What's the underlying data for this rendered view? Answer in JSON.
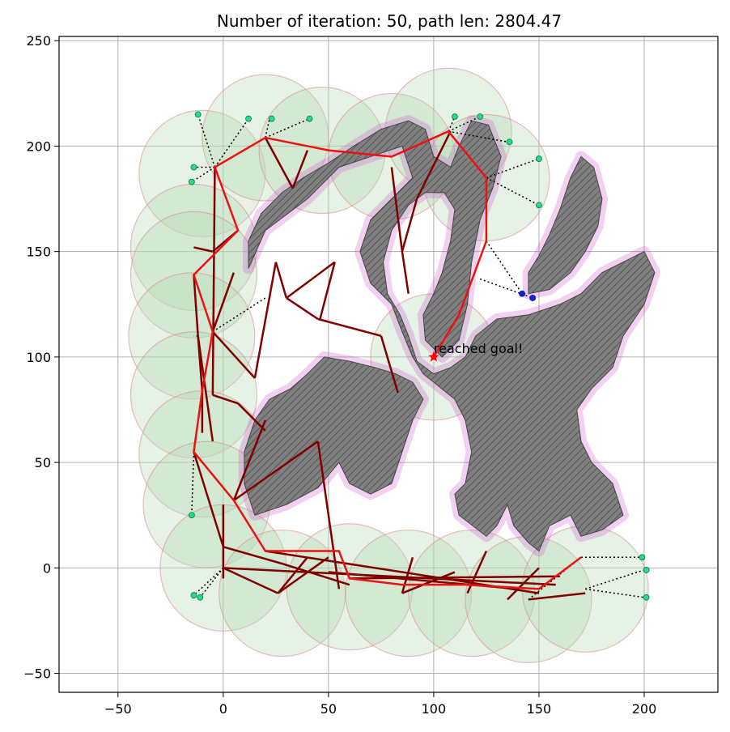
{
  "chart_data": {
    "type": "scatter",
    "title": "Number of iteration: 50, path len: 2804.47",
    "xlabel": "",
    "ylabel": "",
    "xlim": [
      -78,
      235
    ],
    "ylim": [
      -59,
      252
    ],
    "grid": true,
    "x_ticks": [
      -50,
      0,
      50,
      100,
      150,
      200
    ],
    "y_ticks": [
      -50,
      0,
      50,
      100,
      150,
      200,
      250
    ],
    "annotation": {
      "text": "reached goal!",
      "x": 100,
      "y": 100
    },
    "goal": {
      "x": 100,
      "y": 100
    },
    "colors": {
      "obstacle": "#808080",
      "free_region": "#e8b0ee",
      "coverage_circle": "#b5d9b5",
      "final_path": "#ee1111",
      "tree_edges": "#800000",
      "frontier_point": "#22dd88",
      "blue_point": "#1122cc"
    },
    "obstacles": [
      [
        [
          12,
          142
        ],
        [
          20,
          160
        ],
        [
          40,
          175
        ],
        [
          55,
          190
        ],
        [
          70,
          195
        ],
        [
          85,
          200
        ],
        [
          90,
          185
        ],
        [
          80,
          175
        ],
        [
          70,
          165
        ],
        [
          65,
          150
        ],
        [
          70,
          135
        ],
        [
          80,
          125
        ],
        [
          85,
          112
        ],
        [
          90,
          100
        ],
        [
          95,
          92
        ],
        [
          100,
          88
        ],
        [
          110,
          80
        ],
        [
          115,
          70
        ],
        [
          118,
          55
        ],
        [
          115,
          40
        ],
        [
          110,
          35
        ],
        [
          112,
          25
        ],
        [
          125,
          15
        ],
        [
          130,
          20
        ],
        [
          135,
          30
        ],
        [
          138,
          20
        ],
        [
          145,
          12
        ],
        [
          150,
          8
        ],
        [
          155,
          20
        ],
        [
          165,
          25
        ],
        [
          170,
          15
        ],
        [
          180,
          18
        ],
        [
          190,
          25
        ],
        [
          185,
          40
        ],
        [
          175,
          50
        ],
        [
          170,
          60
        ],
        [
          168,
          75
        ],
        [
          175,
          85
        ],
        [
          185,
          95
        ],
        [
          190,
          110
        ],
        [
          200,
          125
        ],
        [
          205,
          140
        ],
        [
          200,
          150
        ],
        [
          190,
          145
        ],
        [
          180,
          140
        ],
        [
          170,
          130
        ],
        [
          160,
          125
        ],
        [
          145,
          120
        ],
        [
          130,
          118
        ],
        [
          120,
          110
        ],
        [
          115,
          100
        ],
        [
          108,
          95
        ],
        [
          100,
          92
        ],
        [
          92,
          98
        ],
        [
          88,
          110
        ],
        [
          84,
          120
        ],
        [
          78,
          130
        ],
        [
          76,
          145
        ],
        [
          80,
          160
        ],
        [
          88,
          172
        ],
        [
          96,
          178
        ],
        [
          105,
          178
        ],
        [
          110,
          170
        ],
        [
          108,
          155
        ],
        [
          104,
          140
        ],
        [
          100,
          130
        ],
        [
          95,
          120
        ],
        [
          96,
          108
        ],
        [
          104,
          100
        ],
        [
          112,
          108
        ],
        [
          116,
          125
        ],
        [
          118,
          145
        ],
        [
          122,
          165
        ],
        [
          128,
          180
        ],
        [
          132,
          195
        ],
        [
          126,
          210
        ],
        [
          118,
          212
        ],
        [
          112,
          200
        ],
        [
          108,
          190
        ],
        [
          100,
          195
        ],
        [
          96,
          208
        ],
        [
          88,
          212
        ],
        [
          75,
          208
        ],
        [
          62,
          200
        ],
        [
          50,
          192
        ],
        [
          38,
          185
        ],
        [
          28,
          178
        ],
        [
          18,
          168
        ],
        [
          12,
          155
        ]
      ],
      [
        [
          15,
          25
        ],
        [
          30,
          30
        ],
        [
          45,
          38
        ],
        [
          55,
          50
        ],
        [
          60,
          40
        ],
        [
          70,
          35
        ],
        [
          80,
          40
        ],
        [
          85,
          55
        ],
        [
          90,
          70
        ],
        [
          95,
          80
        ],
        [
          90,
          88
        ],
        [
          82,
          92
        ],
        [
          72,
          95
        ],
        [
          60,
          98
        ],
        [
          48,
          100
        ],
        [
          40,
          92
        ],
        [
          32,
          85
        ],
        [
          22,
          80
        ],
        [
          15,
          70
        ],
        [
          10,
          55
        ],
        [
          10,
          40
        ]
      ],
      [
        [
          145,
          130
        ],
        [
          155,
          132
        ],
        [
          165,
          140
        ],
        [
          172,
          150
        ],
        [
          178,
          162
        ],
        [
          180,
          175
        ],
        [
          176,
          190
        ],
        [
          170,
          195
        ],
        [
          165,
          185
        ],
        [
          160,
          170
        ],
        [
          155,
          158
        ],
        [
          150,
          148
        ],
        [
          145,
          140
        ]
      ]
    ],
    "circles": [
      {
        "x": -10,
        "y": 187,
        "r": 30
      },
      {
        "x": 20,
        "y": 204,
        "r": 30
      },
      {
        "x": 47,
        "y": 198,
        "r": 30
      },
      {
        "x": 80,
        "y": 195,
        "r": 30
      },
      {
        "x": 107,
        "y": 207,
        "r": 30
      },
      {
        "x": 125,
        "y": 185,
        "r": 30
      },
      {
        "x": -14,
        "y": 152,
        "r": 30
      },
      {
        "x": -14,
        "y": 139,
        "r": 30
      },
      {
        "x": -15,
        "y": 110,
        "r": 30
      },
      {
        "x": -14,
        "y": 82,
        "r": 30
      },
      {
        "x": -10,
        "y": 54,
        "r": 30
      },
      {
        "x": -8,
        "y": 30,
        "r": 30
      },
      {
        "x": 0,
        "y": 0,
        "r": 30
      },
      {
        "x": 28,
        "y": -12,
        "r": 30
      },
      {
        "x": 60,
        "y": -9,
        "r": 30
      },
      {
        "x": 88,
        "y": -12,
        "r": 30
      },
      {
        "x": 118,
        "y": -12,
        "r": 30
      },
      {
        "x": 145,
        "y": -15,
        "r": 30
      },
      {
        "x": 172,
        "y": -10,
        "r": 30
      },
      {
        "x": 100,
        "y": 100,
        "r": 30
      }
    ],
    "final_path": [
      [
        100,
        100
      ],
      [
        112,
        120
      ],
      [
        125,
        155
      ],
      [
        125,
        185
      ],
      [
        107,
        207
      ],
      [
        80,
        195
      ],
      [
        50,
        198
      ],
      [
        20,
        204
      ],
      [
        -4,
        190
      ],
      [
        7,
        160
      ],
      [
        -14,
        139
      ],
      [
        -5,
        112
      ],
      [
        -10,
        84
      ],
      [
        -14,
        55
      ],
      [
        5,
        32
      ],
      [
        20,
        8
      ],
      [
        55,
        8
      ],
      [
        60,
        -5
      ],
      [
        85,
        -8
      ],
      [
        115,
        -8
      ],
      [
        150,
        -10
      ],
      [
        170,
        5
      ]
    ],
    "tree_edges": [
      [
        [
          -4,
          190
        ],
        [
          -5,
          82
        ]
      ],
      [
        [
          -14,
          139
        ],
        [
          -12,
          110
        ]
      ],
      [
        [
          -12,
          110
        ],
        [
          -10,
          84
        ]
      ],
      [
        [
          -10,
          84
        ],
        [
          -10,
          64
        ]
      ],
      [
        [
          -5,
          82
        ],
        [
          7,
          78
        ]
      ],
      [
        [
          7,
          78
        ],
        [
          20,
          65
        ]
      ],
      [
        [
          -5,
          112
        ],
        [
          15,
          90
        ]
      ],
      [
        [
          -5,
          112
        ],
        [
          5,
          140
        ]
      ],
      [
        [
          15,
          90
        ],
        [
          25,
          145
        ]
      ],
      [
        [
          25,
          145
        ],
        [
          30,
          128
        ]
      ],
      [
        [
          30,
          128
        ],
        [
          45,
          118
        ]
      ],
      [
        [
          45,
          118
        ],
        [
          75,
          110
        ]
      ],
      [
        [
          75,
          110
        ],
        [
          83,
          83
        ]
      ],
      [
        [
          30,
          128
        ],
        [
          53,
          145
        ]
      ],
      [
        [
          53,
          145
        ],
        [
          46,
          118
        ]
      ],
      [
        [
          5,
          32
        ],
        [
          45,
          60
        ]
      ],
      [
        [
          5,
          32
        ],
        [
          20,
          70
        ]
      ],
      [
        [
          -14,
          55
        ],
        [
          0,
          10
        ]
      ],
      [
        [
          0,
          10
        ],
        [
          28,
          2
        ]
      ],
      [
        [
          28,
          2
        ],
        [
          60,
          -8
        ]
      ],
      [
        [
          0,
          0
        ],
        [
          158,
          -8
        ]
      ],
      [
        [
          20,
          8
        ],
        [
          150,
          -12
        ]
      ],
      [
        [
          50,
          -2
        ],
        [
          140,
          -10
        ]
      ],
      [
        [
          60,
          -5
        ],
        [
          160,
          -4
        ]
      ],
      [
        [
          0,
          0
        ],
        [
          26,
          -12
        ]
      ],
      [
        [
          26,
          -12
        ],
        [
          40,
          5
        ]
      ],
      [
        [
          26,
          -12
        ],
        [
          50,
          5
        ]
      ],
      [
        [
          85,
          -12
        ],
        [
          90,
          5
        ]
      ],
      [
        [
          85,
          -12
        ],
        [
          110,
          -2
        ]
      ],
      [
        [
          116,
          -12
        ],
        [
          125,
          8
        ]
      ],
      [
        [
          135,
          -15
        ],
        [
          150,
          0
        ]
      ],
      [
        [
          145,
          -15
        ],
        [
          172,
          -12
        ]
      ],
      [
        [
          88,
          130
        ],
        [
          85,
          150
        ]
      ],
      [
        [
          85,
          150
        ],
        [
          92,
          175
        ]
      ],
      [
        [
          92,
          175
        ],
        [
          108,
          207
        ]
      ],
      [
        [
          85,
          150
        ],
        [
          80,
          190
        ]
      ],
      [
        [
          20,
          204
        ],
        [
          33,
          180
        ]
      ],
      [
        [
          33,
          180
        ],
        [
          40,
          198
        ]
      ],
      [
        [
          7,
          160
        ],
        [
          -5,
          150
        ]
      ],
      [
        [
          -5,
          150
        ],
        [
          -14,
          152
        ]
      ],
      [
        [
          -12,
          110
        ],
        [
          -5,
          60
        ]
      ],
      [
        [
          45,
          60
        ],
        [
          55,
          -10
        ]
      ],
      [
        [
          0,
          30
        ],
        [
          0,
          -5
        ]
      ]
    ],
    "dotted_edges": [
      [
        [
          -4,
          190
        ],
        [
          -12,
          215
        ]
      ],
      [
        [
          -4,
          190
        ],
        [
          -14,
          190
        ]
      ],
      [
        [
          -4,
          190
        ],
        [
          -15,
          183
        ]
      ],
      [
        [
          -4,
          190
        ],
        [
          12,
          213
        ]
      ],
      [
        [
          20,
          204
        ],
        [
          22,
          213
        ]
      ],
      [
        [
          20,
          204
        ],
        [
          41,
          213
        ]
      ],
      [
        [
          107,
          207
        ],
        [
          110,
          214
        ]
      ],
      [
        [
          107,
          207
        ],
        [
          122,
          214
        ]
      ],
      [
        [
          107,
          207
        ],
        [
          135,
          202
        ]
      ],
      [
        [
          125,
          185
        ],
        [
          150,
          194
        ]
      ],
      [
        [
          125,
          185
        ],
        [
          150,
          172
        ]
      ],
      [
        [
          125,
          155
        ],
        [
          142,
          130
        ]
      ],
      [
        [
          122,
          137
        ],
        [
          147,
          128
        ]
      ],
      [
        [
          -5,
          112
        ],
        [
          20,
          128
        ]
      ],
      [
        [
          -12,
          110
        ],
        [
          -14,
          110
        ]
      ],
      [
        [
          -14,
          55
        ],
        [
          -15,
          25
        ]
      ],
      [
        [
          0,
          0
        ],
        [
          -14,
          -13
        ]
      ],
      [
        [
          0,
          0
        ],
        [
          -11,
          -14
        ]
      ],
      [
        [
          170,
          5
        ],
        [
          199,
          5
        ]
      ],
      [
        [
          172,
          -10
        ],
        [
          200,
          -1
        ]
      ],
      [
        [
          172,
          -10
        ],
        [
          200,
          -14
        ]
      ],
      [
        [
          145,
          -15
        ],
        [
          170,
          5
        ]
      ]
    ],
    "frontier_points": [
      {
        "x": -12,
        "y": 215
      },
      {
        "x": -14,
        "y": 190
      },
      {
        "x": -15,
        "y": 183
      },
      {
        "x": 12,
        "y": 213
      },
      {
        "x": 23,
        "y": 213
      },
      {
        "x": 41,
        "y": 213
      },
      {
        "x": 110,
        "y": 214
      },
      {
        "x": 122,
        "y": 214
      },
      {
        "x": 136,
        "y": 202
      },
      {
        "x": 150,
        "y": 194
      },
      {
        "x": 150,
        "y": 172
      },
      {
        "x": -15,
        "y": 25
      },
      {
        "x": -14,
        "y": -13
      },
      {
        "x": -11,
        "y": -14
      },
      {
        "x": 199,
        "y": 5
      },
      {
        "x": 201,
        "y": -1
      },
      {
        "x": 201,
        "y": -14
      }
    ],
    "blue_points": [
      {
        "x": 142,
        "y": 130
      },
      {
        "x": 147,
        "y": 128
      }
    ]
  }
}
